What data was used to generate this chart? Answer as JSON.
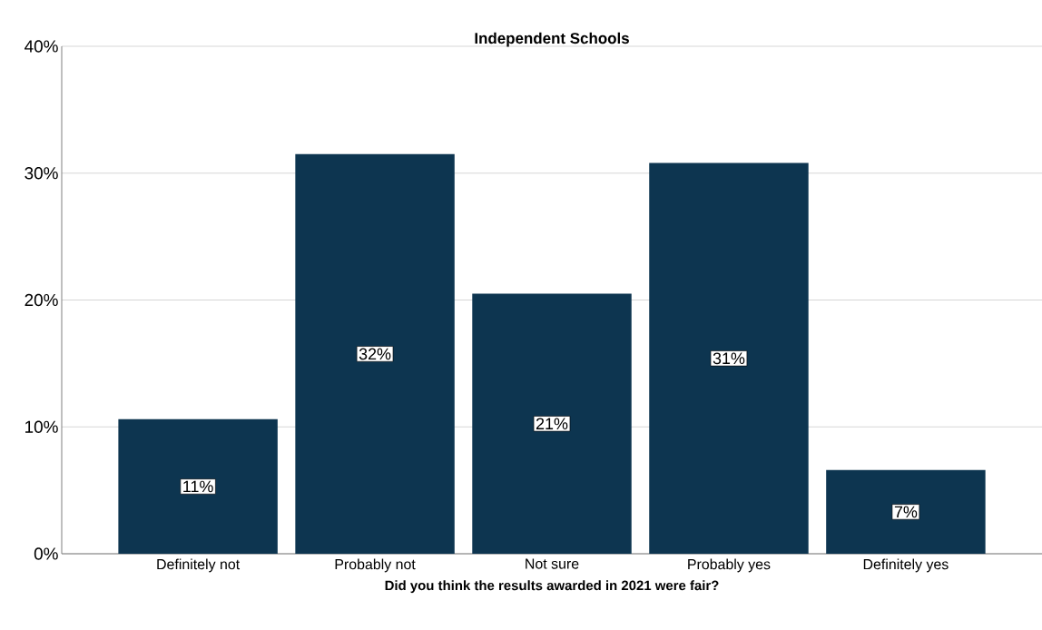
{
  "chart_data": {
    "type": "bar",
    "title": "Independent Schools",
    "xlabel": "Did you think the results awarded in 2021 were fair?",
    "categories": [
      "Definitely not",
      "Probably not",
      "Not sure",
      "Probably yes",
      "Definitely yes"
    ],
    "values": [
      10.6,
      31.5,
      20.5,
      30.8,
      6.6
    ],
    "value_labels": [
      "11%",
      "32%",
      "21%",
      "31%",
      "7%"
    ],
    "color": "#0d3550",
    "ylim": [
      0,
      40
    ],
    "yticks": [
      {
        "value": 0,
        "label": "0%"
      },
      {
        "value": 10,
        "label": "10%"
      },
      {
        "value": 20,
        "label": "20%"
      },
      {
        "value": 30,
        "label": "30%"
      },
      {
        "value": 40,
        "label": "40%"
      }
    ],
    "grid": "y"
  }
}
